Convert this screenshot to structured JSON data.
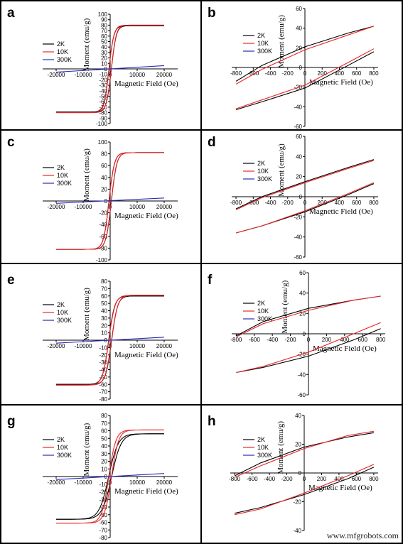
{
  "watermark": "www.mfgrobots.com",
  "colors": {
    "2K": "#000000",
    "10K": "#e8262a",
    "300K": "#2a2ab8",
    "axis": "#000000",
    "frame": "#000000"
  },
  "legend": [
    "2K",
    "10K",
    "300K"
  ],
  "chart_data": [
    {
      "panel": "a",
      "type": "line",
      "xlabel": "Magnetic Field (Oe)",
      "ylabel": "Moment (emu/g)",
      "xlim": [
        -25000,
        25000
      ],
      "ylim": [
        -100,
        100
      ],
      "xticks": [
        -20000,
        -10000,
        0,
        10000,
        20000
      ],
      "yticks": [
        -100,
        -90,
        -80,
        -70,
        -60,
        -50,
        -40,
        -30,
        -20,
        -10,
        0,
        10,
        20,
        30,
        40,
        50,
        60,
        70,
        80,
        90,
        100
      ],
      "series": [
        {
          "name": "2K",
          "kind": "loop",
          "Ms": 79,
          "Hc": 450,
          "M0": 0,
          "w": 1800
        },
        {
          "name": "10K",
          "kind": "loop",
          "Ms": 80,
          "Hc": 430,
          "M0": 0,
          "w": 1800
        },
        {
          "name": "300K",
          "kind": "line",
          "x": [
            -20000,
            20000
          ],
          "y": [
            -6,
            6
          ]
        }
      ]
    },
    {
      "panel": "b",
      "type": "line",
      "xlabel": "Magnetic Field (Oe)",
      "ylabel": "Moment (emu/g)",
      "xlim": [
        -850,
        850
      ],
      "ylim": [
        -60,
        60
      ],
      "xticks": [
        -800,
        -600,
        -400,
        -200,
        0,
        200,
        400,
        600,
        800
      ],
      "yticks": [
        -60,
        -40,
        -20,
        0,
        20,
        40,
        60
      ],
      "series": [
        {
          "name": "2K",
          "kind": "branches",
          "upper": [
            [
              -800,
              -14
            ],
            [
              -500,
              2
            ],
            [
              0,
              21
            ],
            [
              500,
              35
            ],
            [
              800,
              42
            ]
          ],
          "lower": [
            [
              -800,
              -43
            ],
            [
              -500,
              -35
            ],
            [
              0,
              -21
            ],
            [
              500,
              2
            ],
            [
              800,
              16
            ]
          ]
        },
        {
          "name": "10K",
          "kind": "branches",
          "upper": [
            [
              -800,
              -17
            ],
            [
              -500,
              -2
            ],
            [
              0,
              18
            ],
            [
              500,
              33
            ],
            [
              800,
              42
            ]
          ],
          "lower": [
            [
              -800,
              -42
            ],
            [
              -500,
              -33
            ],
            [
              0,
              -18
            ],
            [
              500,
              5
            ],
            [
              800,
              19
            ]
          ]
        }
      ]
    },
    {
      "panel": "c",
      "type": "line",
      "xlabel": "Magnetic Field (Oe)",
      "ylabel": "Moment (emu/g)",
      "xlim": [
        -25000,
        25000
      ],
      "ylim": [
        -100,
        100
      ],
      "xticks": [
        -20000,
        -10000,
        0,
        10000,
        20000
      ],
      "yticks": [
        -100,
        -80,
        -60,
        -40,
        -20,
        0,
        20,
        40,
        60,
        80,
        100
      ],
      "series": [
        {
          "name": "2K",
          "kind": "loop",
          "Ms": 82,
          "Hc": 450,
          "M0": 0,
          "w": 2000
        },
        {
          "name": "10K",
          "kind": "loop",
          "Ms": 82,
          "Hc": 430,
          "M0": 0,
          "w": 2000
        },
        {
          "name": "300K",
          "kind": "line",
          "x": [
            -20000,
            20000
          ],
          "y": [
            -4,
            5
          ]
        }
      ]
    },
    {
      "panel": "d",
      "type": "line",
      "xlabel": "Magnetic Field (Oe)",
      "ylabel": "Moment (emu/g)",
      "xlim": [
        -850,
        850
      ],
      "ylim": [
        -60,
        60
      ],
      "xticks": [
        -800,
        -600,
        -400,
        -200,
        0,
        200,
        400,
        600,
        800
      ],
      "yticks": [
        -60,
        -40,
        -20,
        0,
        20,
        40,
        60
      ],
      "series": [
        {
          "name": "2K",
          "kind": "branches",
          "upper": [
            [
              -800,
              -12
            ],
            [
              -500,
              0
            ],
            [
              0,
              15
            ],
            [
              500,
              29
            ],
            [
              800,
              37
            ]
          ],
          "lower": [
            [
              -800,
              -36
            ],
            [
              -500,
              -29
            ],
            [
              0,
              -15
            ],
            [
              500,
              2
            ],
            [
              800,
              13
            ]
          ]
        },
        {
          "name": "10K",
          "kind": "branches",
          "upper": [
            [
              -800,
              -13
            ],
            [
              -500,
              -1
            ],
            [
              0,
              14
            ],
            [
              500,
              28
            ],
            [
              800,
              36
            ]
          ],
          "lower": [
            [
              -800,
              -36
            ],
            [
              -500,
              -29
            ],
            [
              0,
              -14
            ],
            [
              500,
              3
            ],
            [
              800,
              14
            ]
          ]
        }
      ]
    },
    {
      "panel": "e",
      "type": "line",
      "xlabel": "Magnetic Field (Oe)",
      "ylabel": "Moment (emu/g)",
      "xlim": [
        -25000,
        25000
      ],
      "ylim": [
        -80,
        80
      ],
      "xticks": [
        -20000,
        -10000,
        0,
        10000,
        20000
      ],
      "yticks": [
        -80,
        -70,
        -60,
        -50,
        -40,
        -30,
        -20,
        -10,
        0,
        10,
        20,
        30,
        40,
        50,
        60,
        70,
        80
      ],
      "series": [
        {
          "name": "2K",
          "kind": "loop",
          "Ms": 60,
          "Hc": 550,
          "M0": 0,
          "w": 2200
        },
        {
          "name": "10K",
          "kind": "loop",
          "Ms": 61,
          "Hc": 500,
          "M0": 0,
          "w": 2300
        },
        {
          "name": "300K",
          "kind": "line",
          "x": [
            -20000,
            20000
          ],
          "y": [
            -4,
            4
          ]
        }
      ]
    },
    {
      "panel": "f",
      "type": "line",
      "xlabel": "Magnetic Field (Oe)",
      "ylabel": "Moment (emu/g)",
      "xlim": [
        -850,
        850
      ],
      "ylim": [
        -60,
        60
      ],
      "xticks": [
        -800,
        -600,
        -400,
        -200,
        0,
        200,
        400,
        600,
        800
      ],
      "yticks": [
        -60,
        -40,
        -20,
        0,
        20,
        40,
        60
      ],
      "series": [
        {
          "name": "2K",
          "kind": "branches",
          "upper": [
            [
              -800,
              -2
            ],
            [
              -500,
              12
            ],
            [
              0,
              25
            ],
            [
              500,
              33
            ],
            [
              800,
              37
            ]
          ],
          "lower": [
            [
              -800,
              -38
            ],
            [
              -500,
              -33
            ],
            [
              0,
              -22
            ],
            [
              500,
              -6
            ],
            [
              800,
              5
            ]
          ]
        },
        {
          "name": "10K",
          "kind": "branches",
          "upper": [
            [
              -800,
              -3
            ],
            [
              -500,
              10
            ],
            [
              0,
              23
            ],
            [
              500,
              33
            ],
            [
              800,
              37
            ]
          ],
          "lower": [
            [
              -800,
              -38
            ],
            [
              -500,
              -32
            ],
            [
              0,
              -18
            ],
            [
              500,
              0
            ],
            [
              800,
              11
            ]
          ]
        }
      ]
    },
    {
      "panel": "g",
      "type": "line",
      "xlabel": "Magnetic Field (Oe)",
      "ylabel": "Moment (emu/g)",
      "xlim": [
        -25000,
        25000
      ],
      "ylim": [
        -80,
        80
      ],
      "xticks": [
        -20000,
        -10000,
        0,
        10000,
        20000
      ],
      "yticks": [
        -80,
        -70,
        -60,
        -50,
        -40,
        -30,
        -20,
        -10,
        0,
        10,
        20,
        30,
        40,
        50,
        60,
        70,
        80
      ],
      "series": [
        {
          "name": "2K",
          "kind": "loop",
          "Ms": 56,
          "Hc": 550,
          "M0": 0,
          "w": 3500
        },
        {
          "name": "10K",
          "kind": "loop",
          "Ms": 61,
          "Hc": 500,
          "M0": 0,
          "w": 2600
        },
        {
          "name": "300K",
          "kind": "line",
          "x": [
            -20000,
            20000
          ],
          "y": [
            -4,
            4
          ]
        }
      ]
    },
    {
      "panel": "h",
      "type": "line",
      "xlabel": "Magnetic Field (Oe)",
      "ylabel": "Moment (emu/g)",
      "xlim": [
        -850,
        850
      ],
      "ylim": [
        -40,
        40
      ],
      "xticks": [
        -800,
        -600,
        -400,
        -200,
        0,
        200,
        400,
        600,
        800
      ],
      "yticks": [
        -40,
        -20,
        0,
        20,
        40
      ],
      "series": [
        {
          "name": "2K",
          "kind": "branches",
          "upper": [
            [
              -800,
              -2
            ],
            [
              -500,
              7
            ],
            [
              0,
              18
            ],
            [
              500,
              25
            ],
            [
              800,
              28
            ]
          ],
          "lower": [
            [
              -800,
              -28
            ],
            [
              -500,
              -24
            ],
            [
              0,
              -15
            ],
            [
              500,
              -4
            ],
            [
              800,
              4
            ]
          ]
        },
        {
          "name": "10K",
          "kind": "branches",
          "upper": [
            [
              -800,
              -3
            ],
            [
              -500,
              5
            ],
            [
              0,
              17
            ],
            [
              500,
              26
            ],
            [
              800,
              29
            ]
          ],
          "lower": [
            [
              -800,
              -29
            ],
            [
              -500,
              -25
            ],
            [
              0,
              -14
            ],
            [
              500,
              -2
            ],
            [
              800,
              6
            ]
          ]
        }
      ]
    }
  ]
}
